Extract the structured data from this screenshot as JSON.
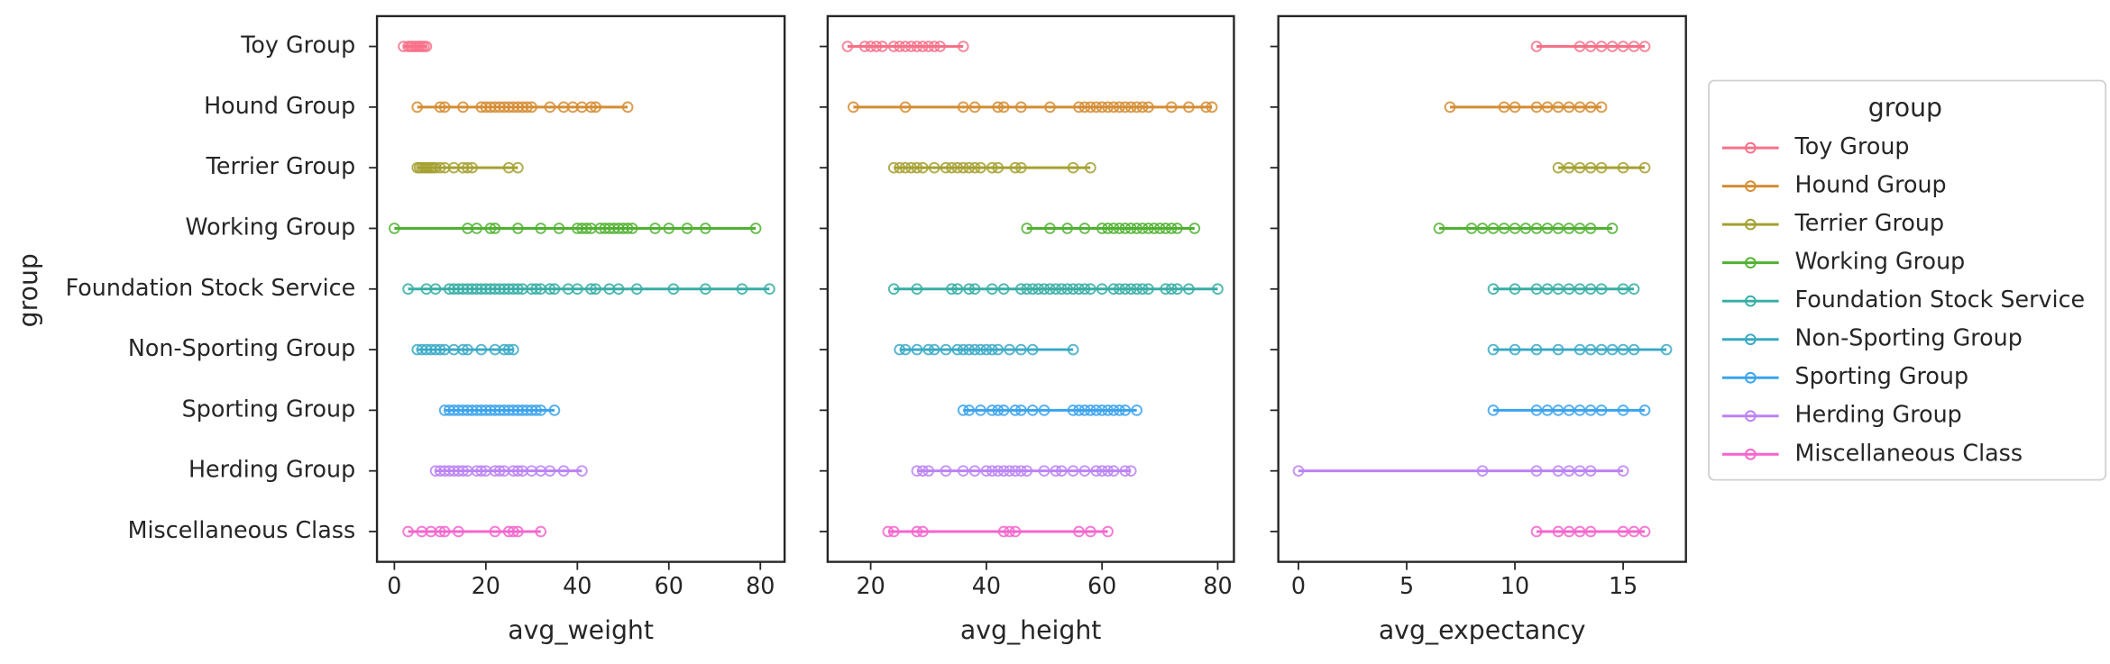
{
  "chart_data": [
    {
      "type": "strip",
      "xlabel": "avg_weight",
      "ylabel": "group",
      "legend_title": "group",
      "legend": "right outside",
      "xlim": [
        -3.8,
        85.3
      ],
      "xticks": [
        0,
        20,
        40,
        60,
        80
      ],
      "series": [
        {
          "name": "Toy Group",
          "color": "#f77189",
          "values": [
            2,
            3,
            3.5,
            4,
            4.5,
            5,
            5.5,
            6,
            6.5,
            7
          ]
        },
        {
          "name": "Hound Group",
          "color": "#d58c32",
          "values": [
            5,
            10,
            11,
            15,
            19,
            20,
            21,
            22,
            23,
            24,
            25,
            26,
            27,
            28,
            29,
            30,
            34,
            37,
            39,
            41,
            43,
            44,
            51
          ]
        },
        {
          "name": "Terrier Group",
          "color": "#a4a031",
          "values": [
            5,
            5.5,
            6,
            6.5,
            7,
            7.5,
            8,
            8.5,
            9,
            10,
            11,
            13,
            15,
            16,
            17,
            25,
            27
          ]
        },
        {
          "name": "Working Group",
          "color": "#50b131",
          "values": [
            0,
            16,
            18,
            21,
            22,
            27,
            32,
            36,
            40,
            41,
            42,
            43,
            45,
            46,
            47,
            48,
            49,
            50,
            51,
            52,
            57,
            60,
            64,
            68,
            79
          ]
        },
        {
          "name": "Foundation Stock Service",
          "color": "#36ada4",
          "values": [
            3,
            7,
            9,
            12,
            13,
            14,
            15,
            16,
            17,
            18,
            19,
            20,
            21,
            22,
            23,
            24,
            25,
            26,
            27,
            28,
            30,
            31,
            32,
            34,
            35,
            38,
            40,
            43,
            44,
            47,
            49,
            53,
            61,
            68,
            76,
            82
          ]
        },
        {
          "name": "Non-Sporting Group",
          "color": "#38a9c5",
          "values": [
            5,
            6,
            7,
            8,
            9,
            10,
            11,
            13,
            15,
            16,
            19,
            22,
            24,
            25,
            26
          ]
        },
        {
          "name": "Sporting Group",
          "color": "#3ba3ec",
          "values": [
            11,
            12,
            13,
            14,
            15,
            16,
            17,
            18,
            19,
            20,
            21,
            22,
            23,
            24,
            25,
            26,
            27,
            28,
            29,
            30,
            31,
            32,
            35
          ]
        },
        {
          "name": "Herding Group",
          "color": "#bb83f4",
          "values": [
            9,
            10,
            11,
            12,
            13,
            14,
            15,
            16,
            18,
            19,
            20,
            22,
            23,
            24,
            26,
            27,
            28,
            30,
            32,
            34,
            37,
            41
          ]
        },
        {
          "name": "Miscellaneous Class",
          "color": "#f565cc",
          "values": [
            3,
            6,
            8,
            10,
            11,
            14,
            22,
            25,
            26,
            27,
            32
          ]
        }
      ]
    },
    {
      "type": "strip",
      "xlabel": "avg_height",
      "xlim": [
        12.56,
        82.8
      ],
      "xticks": [
        20,
        40,
        60,
        80
      ],
      "series": [
        {
          "color": "#f77189",
          "values": [
            16,
            19,
            20,
            21,
            22,
            24,
            25,
            26,
            27,
            28,
            29,
            30,
            31,
            32,
            36
          ]
        },
        {
          "color": "#d58c32",
          "values": [
            17,
            26,
            36,
            38,
            42,
            43,
            46,
            51,
            56,
            57,
            58,
            59,
            60,
            61,
            62,
            63,
            64,
            65,
            66,
            67,
            68,
            72,
            75,
            78,
            79
          ]
        },
        {
          "color": "#a4a031",
          "values": [
            24,
            25,
            26,
            27,
            28,
            29,
            31,
            33,
            34,
            35,
            36,
            37,
            38,
            39,
            41,
            42,
            45,
            46,
            55,
            58
          ]
        },
        {
          "color": "#50b131",
          "values": [
            47,
            51,
            54,
            57,
            60,
            61,
            62,
            63,
            64,
            65,
            66,
            67,
            68,
            69,
            70,
            71,
            72,
            73,
            76
          ]
        },
        {
          "color": "#36ada4",
          "values": [
            24,
            28,
            34,
            35,
            37,
            38,
            41,
            43,
            46,
            47,
            48,
            49,
            50,
            51,
            52,
            53,
            54,
            55,
            56,
            57,
            58,
            60,
            62,
            63,
            64,
            65,
            66,
            67,
            68,
            71,
            72,
            73,
            75,
            80
          ]
        },
        {
          "color": "#38a9c5",
          "values": [
            25,
            26,
            28,
            30,
            31,
            33,
            35,
            36,
            37,
            38,
            39,
            40,
            41,
            42,
            44,
            46,
            48,
            55
          ]
        },
        {
          "color": "#3ba3ec",
          "values": [
            36,
            37,
            39,
            41,
            42,
            43,
            45,
            46,
            48,
            50,
            55,
            56,
            57,
            58,
            59,
            60,
            61,
            62,
            63,
            64,
            66
          ]
        },
        {
          "color": "#bb83f4",
          "values": [
            28,
            29,
            30,
            33,
            36,
            38,
            40,
            41,
            42,
            43,
            44,
            45,
            46,
            47,
            50,
            52,
            53,
            55,
            57,
            59,
            60,
            61,
            62,
            64,
            65
          ]
        },
        {
          "color": "#f565cc",
          "values": [
            23,
            24,
            28,
            29,
            43,
            44,
            45,
            56,
            58,
            61
          ]
        }
      ]
    },
    {
      "type": "strip",
      "xlabel": "avg_expectancy",
      "xlim": [
        -0.93,
        17.9
      ],
      "xticks": [
        0,
        5,
        10,
        15
      ],
      "series": [
        {
          "color": "#f77189",
          "values": [
            11,
            13,
            13.5,
            14,
            14.5,
            15,
            15.5,
            16
          ]
        },
        {
          "color": "#d58c32",
          "values": [
            7,
            9.5,
            10,
            11,
            11.5,
            12,
            12.5,
            13,
            13.5,
            14
          ]
        },
        {
          "color": "#a4a031",
          "values": [
            12,
            12.5,
            13,
            13.5,
            14,
            15,
            16
          ]
        },
        {
          "color": "#50b131",
          "values": [
            6.5,
            8,
            8.5,
            9,
            9.5,
            10,
            10.5,
            11,
            11.5,
            12,
            12.5,
            13,
            13.5,
            14.5
          ]
        },
        {
          "color": "#36ada4",
          "values": [
            9,
            10,
            11,
            11.5,
            12,
            12.5,
            13,
            13.5,
            14,
            15,
            15.5
          ]
        },
        {
          "color": "#38a9c5",
          "values": [
            9,
            10,
            11,
            12,
            13,
            13.5,
            14,
            14.5,
            15,
            15.5,
            17
          ]
        },
        {
          "color": "#3ba3ec",
          "values": [
            9,
            11,
            11.5,
            12,
            12.5,
            13,
            13.5,
            14,
            15,
            16
          ]
        },
        {
          "color": "#bb83f4",
          "values": [
            0,
            8.5,
            11,
            12,
            12.5,
            13,
            13.5,
            15
          ]
        },
        {
          "color": "#f565cc",
          "values": [
            11,
            12,
            12.5,
            13,
            13.5,
            15,
            15.5,
            16
          ]
        }
      ]
    }
  ]
}
